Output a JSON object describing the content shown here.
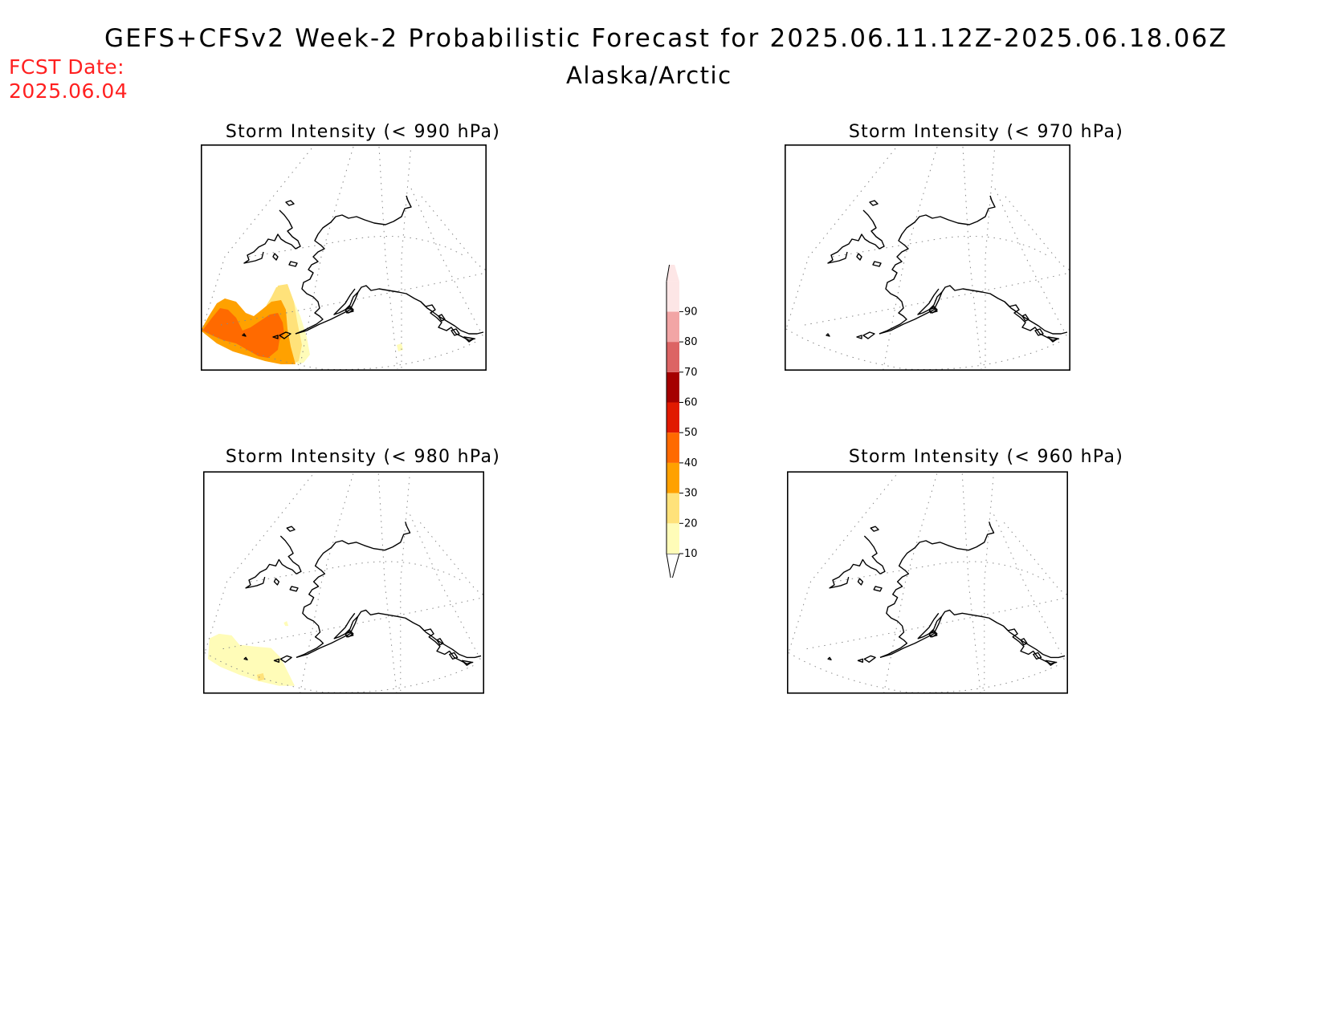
{
  "header": {
    "title": "GEFS+CFSv2 Week-2 Probabilistic Forecast for 2025.06.11.12Z-2025.06.18.06Z",
    "region": "Alaska/Arctic",
    "fcst_date_label": "FCST Date:",
    "fcst_date_value": "2025.06.04"
  },
  "panels": [
    {
      "id": "p990",
      "title": "Storm Intensity (< 990 hPa)",
      "max_probability_category": "40-50"
    },
    {
      "id": "p970",
      "title": "Storm Intensity (< 970 hPa)",
      "max_probability_category": "none"
    },
    {
      "id": "p980",
      "title": "Storm Intensity (< 980 hPa)",
      "max_probability_category": "10-20"
    },
    {
      "id": "p960",
      "title": "Storm Intensity (< 960 hPa)",
      "max_probability_category": "none"
    }
  ],
  "colorbar": {
    "levels": [
      "10",
      "20",
      "30",
      "40",
      "50",
      "60",
      "70",
      "80",
      "90"
    ],
    "colors": [
      "#fffcb8",
      "#ffe27a",
      "#ffa100",
      "#ff6a00",
      "#e11a00",
      "#a50000",
      "#dc6464",
      "#f2a5a5",
      "#fde6e6"
    ]
  }
}
